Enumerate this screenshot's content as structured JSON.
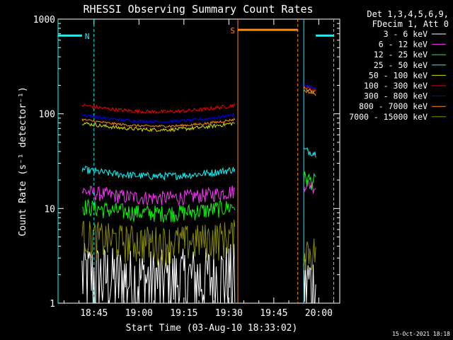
{
  "chart_data": {
    "type": "line",
    "title": "RHESSI Observing Summary Count Rates",
    "xlabel": "Start Time (03-Aug-10 18:33:02)",
    "ylabel": "Count Rate (s⁻¹ detector⁻¹)",
    "yscale": "log",
    "ylim": [
      1,
      1000
    ],
    "xlim": [
      "18:33",
      "20:07"
    ],
    "x_ticks": [
      "18:45",
      "19:00",
      "19:15",
      "19:30",
      "19:45",
      "20:00"
    ],
    "y_ticks": [
      "1",
      "10",
      "100",
      "1000"
    ],
    "timestamp": "15-Oct-2021 18:18",
    "legend_header": [
      "Det 1,3,4,5,6,9,",
      "FDecim 1, Att 0"
    ],
    "grid": false,
    "legend_position": "right",
    "segments": [
      {
        "start": "18:41",
        "end": "19:32"
      },
      {
        "start": "19:55",
        "end": "19:59"
      }
    ],
    "series": [
      {
        "name": "3 - 6 keV",
        "color": "#ffffff",
        "values": [
          1.8,
          1.6
        ],
        "noise": 0.35
      },
      {
        "name": "6 - 12 keV",
        "color": "#ff33ff",
        "values": [
          13,
          17
        ],
        "noise": 0.06
      },
      {
        "name": "12 - 25 keV",
        "color": "#00ff00",
        "values": [
          9,
          19
        ],
        "noise": 0.07
      },
      {
        "name": "25 - 50 keV",
        "color": "#00ffff",
        "values": [
          22,
          38
        ],
        "noise": 0.03
      },
      {
        "name": "50 - 100 keV",
        "color": "#dddd00",
        "values": [
          68,
          170
        ],
        "noise": 0.015
      },
      {
        "name": "100 - 300 keV",
        "color": "#ff0000",
        "values": [
          105,
          175
        ],
        "noise": 0.015
      },
      {
        "name": "300 - 800 keV",
        "color": "#0000ff",
        "values": [
          83,
          185
        ],
        "noise": 0.012
      },
      {
        "name": "800 - 7000 keV",
        "color": "#ff8c00",
        "values": [
          74,
          160
        ],
        "noise": 0.01
      },
      {
        "name": "7000 - 15000 keV",
        "color": "#8b8b00",
        "values": [
          4.5,
          3.5
        ],
        "noise": 0.15
      }
    ],
    "annotations": [
      {
        "label": "N",
        "color": "#00ffff",
        "start": "18:33",
        "end": "18:41",
        "value": 670
      },
      {
        "label": "S",
        "color": "#ff8c00",
        "start": "19:33",
        "end": "19:53",
        "value": 770
      },
      {
        "label": "",
        "color": "#00ffff",
        "start": "19:59",
        "end": "20:05",
        "value": 670
      }
    ],
    "vlines": [
      {
        "time": "18:33",
        "color": "#00ffff",
        "style": "solid"
      },
      {
        "time": "18:45",
        "color": "#00ffff",
        "style": "dashed"
      },
      {
        "time": "19:33",
        "color": "#ff8c00",
        "style": "solid"
      },
      {
        "time": "19:53",
        "color": "#ff8c00",
        "style": "dashed"
      },
      {
        "time": "19:55",
        "color": "#00ffff",
        "style": "solid"
      },
      {
        "time": "20:05",
        "color": "#00ffff",
        "style": "dashed"
      }
    ]
  }
}
